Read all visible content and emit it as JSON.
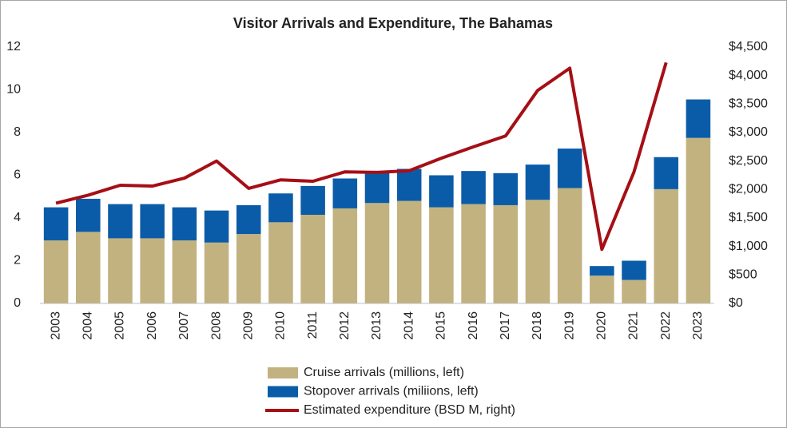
{
  "chart_data": {
    "type": "bar",
    "stacked": true,
    "title": "Visitor Arrivals and Expenditure, The Bahamas",
    "categories": [
      "2003",
      "2004",
      "2005",
      "2006",
      "2007",
      "2008",
      "2009",
      "2010",
      "2011",
      "2012",
      "2013",
      "2014",
      "2015",
      "2016",
      "2017",
      "2018",
      "2019",
      "2020",
      "2021",
      "2022",
      "2023"
    ],
    "series": [
      {
        "name": "Cruise arrivals (millions, left)",
        "color": "#c2b280",
        "type": "bar",
        "values": [
          2.95,
          3.35,
          3.05,
          3.05,
          2.95,
          2.85,
          3.25,
          3.8,
          4.15,
          4.45,
          4.7,
          4.8,
          4.5,
          4.65,
          4.6,
          4.85,
          5.4,
          1.3,
          1.1,
          5.35,
          7.75
        ]
      },
      {
        "name": "Stopover arrivals (miliions, left)",
        "color": "#0b5ca8",
        "type": "bar",
        "values": [
          1.55,
          1.55,
          1.6,
          1.6,
          1.55,
          1.5,
          1.35,
          1.35,
          1.35,
          1.4,
          1.45,
          1.5,
          1.5,
          1.55,
          1.5,
          1.65,
          1.85,
          0.45,
          0.9,
          1.5,
          1.8
        ]
      },
      {
        "name": "Estimated expenditure (BSD M, right)",
        "color": "#a50f15",
        "type": "line",
        "axis": "y2",
        "values": [
          1760,
          1900,
          2075,
          2060,
          2200,
          2500,
          2020,
          2170,
          2145,
          2310,
          2300,
          2330,
          2550,
          2750,
          2940,
          3740,
          4130,
          950,
          2310,
          4230,
          null
        ]
      }
    ],
    "ylim": [
      0,
      12
    ],
    "yticks": [
      0,
      2,
      4,
      6,
      8,
      10,
      12
    ],
    "y2lim": [
      0,
      4500
    ],
    "y2ticks": [
      {
        "value": 0,
        "label": "$0"
      },
      {
        "value": 500,
        "label": "$500"
      },
      {
        "value": 1000,
        "label": "$1,000"
      },
      {
        "value": 1500,
        "label": "$1,500"
      },
      {
        "value": 2000,
        "label": "$2,000"
      },
      {
        "value": 2500,
        "label": "$2,500"
      },
      {
        "value": 3000,
        "label": "$3,000"
      },
      {
        "value": 3500,
        "label": "$3,500"
      },
      {
        "value": 4000,
        "label": "$4,000"
      },
      {
        "value": 4500,
        "label": "$4,500"
      }
    ],
    "grid": false,
    "legend": "bottom"
  }
}
